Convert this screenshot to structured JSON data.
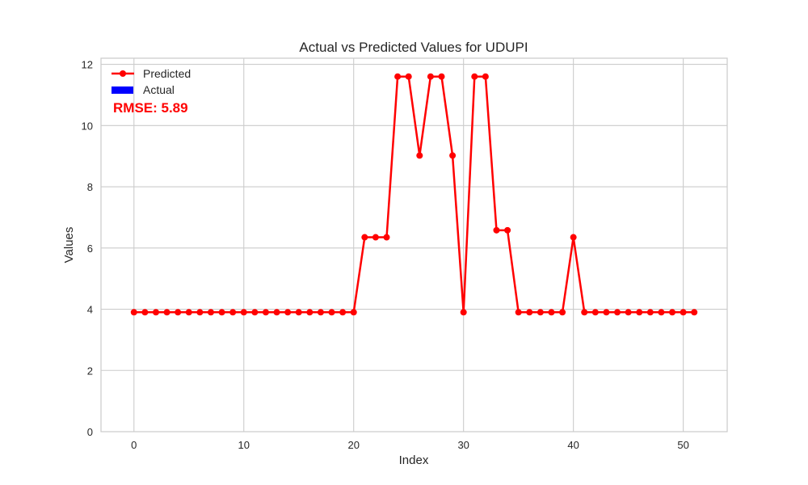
{
  "chart_data": {
    "type": "line",
    "title": "Actual vs Predicted Values for UDUPI",
    "xlabel": "Index",
    "ylabel": "Values",
    "xlim": [
      -3,
      54
    ],
    "ylim": [
      0,
      12.2
    ],
    "xticks": [
      0,
      10,
      20,
      30,
      40,
      50
    ],
    "yticks": [
      0,
      2,
      4,
      6,
      8,
      10,
      12
    ],
    "grid": true,
    "legend_position": "top-left",
    "series": [
      {
        "name": "Predicted",
        "color": "#ff0000",
        "marker": "circle",
        "x": [
          0,
          1,
          2,
          3,
          4,
          5,
          6,
          7,
          8,
          9,
          10,
          11,
          12,
          13,
          14,
          15,
          16,
          17,
          18,
          19,
          20,
          21,
          22,
          23,
          24,
          25,
          26,
          27,
          28,
          29,
          30,
          31,
          32,
          33,
          34,
          35,
          36,
          37,
          38,
          39,
          40,
          41,
          42,
          43,
          44,
          45,
          46,
          47,
          48,
          49,
          50,
          51
        ],
        "values": [
          3.9,
          3.9,
          3.9,
          3.9,
          3.9,
          3.9,
          3.9,
          3.9,
          3.9,
          3.9,
          3.9,
          3.9,
          3.9,
          3.9,
          3.9,
          3.9,
          3.9,
          3.9,
          3.9,
          3.9,
          3.9,
          6.35,
          6.35,
          6.35,
          11.6,
          11.6,
          9.02,
          11.6,
          11.6,
          9.02,
          3.9,
          11.6,
          11.6,
          6.58,
          6.58,
          3.9,
          3.9,
          3.9,
          3.9,
          3.9,
          6.35,
          3.9,
          3.9,
          3.9,
          3.9,
          3.9,
          3.9,
          3.9,
          3.9,
          3.9,
          3.9,
          3.9
        ]
      },
      {
        "name": "Actual",
        "color": "#0000ff",
        "type": "bar",
        "x": [],
        "values": []
      }
    ],
    "annotations": [
      {
        "text": "RMSE: 5.89",
        "color": "#ff0000"
      }
    ]
  }
}
